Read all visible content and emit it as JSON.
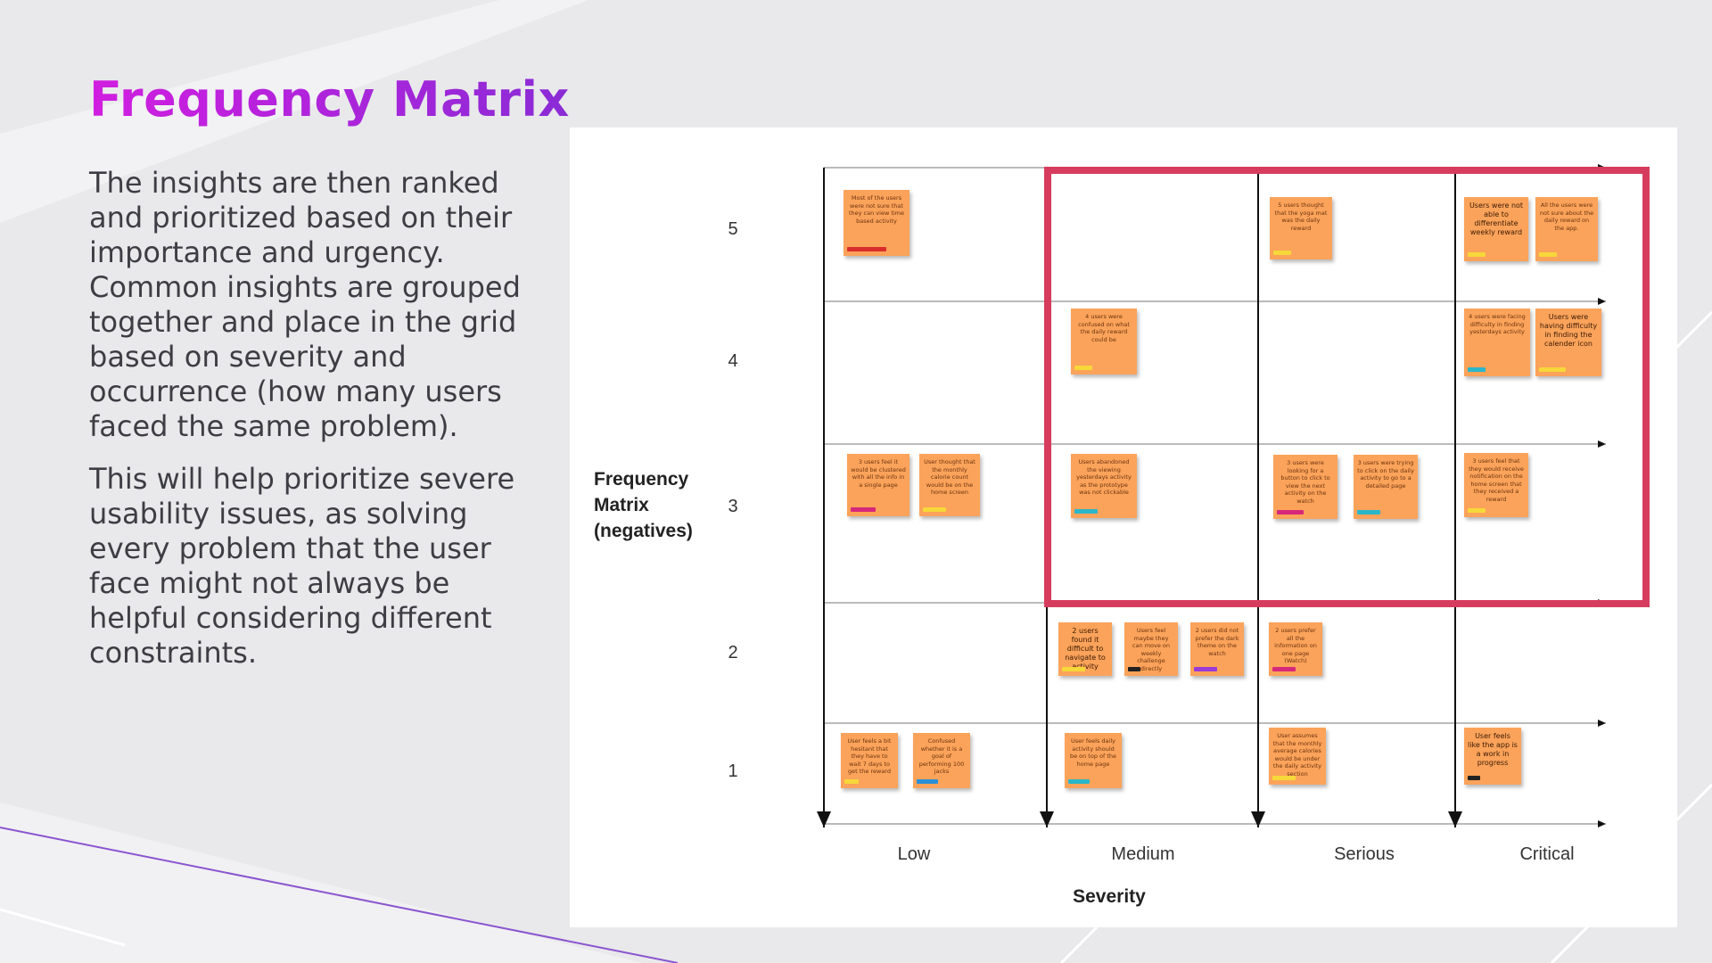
{
  "slide": {
    "title": "Frequency Matrix",
    "paragraph_1": "The insights are then ranked and prioritized based on their importance and urgency. Common insights are grouped together and place in the grid based on severity and occurrence (how many users faced the same problem).",
    "paragraph_2": "This will help prioritize severe usability issues, as solving every problem that the user face might not always be helpful considering different constraints.",
    "accent_color": "#b21fe0"
  },
  "matrix": {
    "y_axis_label": "Frequency Matrix (negatives)",
    "x_axis_label": "Severity",
    "rows": [
      "5",
      "4",
      "3",
      "2",
      "1"
    ],
    "columns": [
      "Low",
      "Medium",
      "Serious",
      "Critical"
    ],
    "highlight_color": "#d63c5e",
    "notes": [
      {
        "text": "Most of the users were not sure that they can view time based activity",
        "tag": "#d92d2d"
      },
      {
        "text": "5 users thought that the yoga mat was the daily reward",
        "tag": "#f6d83a"
      },
      {
        "text": "Users were not able to differentiate weekly reward",
        "tag": "#f6d83a",
        "dark": true
      },
      {
        "text": "All the users were not sure about the daily reward on the app.",
        "tag": "#f6d83a"
      },
      {
        "text": "4 users were confused on what the daily reward could be",
        "tag": "#f6d83a"
      },
      {
        "text": "4 users were facing difficulty in finding yesterdays activity",
        "tag": "#2bb6c9"
      },
      {
        "text": "Users were having difficulty in finding the calender icon",
        "tag": "#f6d83a",
        "dark": true
      },
      {
        "text": "3 users feel it would be clustered with all the info in a single page",
        "tag": "#d6287a"
      },
      {
        "text": "User thought that the monthly calorie count would be on the home screen",
        "tag": "#f6d83a"
      },
      {
        "text": "Users abandoned the viewing yesterdays activity as the prototype was not clickable",
        "tag": "#2bb6c9"
      },
      {
        "text": "3 users were looking for a button to click to view the next activity on the watch",
        "tag": "#d6287a"
      },
      {
        "text": "3 users were trying to click on the daily activity to go to a detailed page",
        "tag": "#2bb6c9"
      },
      {
        "text": "3 users feel that they would receive notification on the home screen that they received a reward",
        "tag": "#f6d83a"
      },
      {
        "text": "2 users found it difficult to navigate to activity",
        "tag": "#f6d83a",
        "dark": true
      },
      {
        "text": "Users feel maybe they can move on weekly challenge directly",
        "tag": "#222222"
      },
      {
        "text": "2 users did not prefer the dark theme on the watch",
        "tag": "#9a3bd8"
      },
      {
        "text": "2 users prefer all the information on one page (Watch)",
        "tag": "#d6287a"
      },
      {
        "text": "User feels a bit hesitant that they have to wait 7 days to get the reward",
        "tag": "#f6d83a"
      },
      {
        "text": "Confused whether it is a goal of performing 100 jacks",
        "tag": "#2b8fd6"
      },
      {
        "text": "User feels daily activity should be on top of the home page",
        "tag": "#2bb6c9"
      },
      {
        "text": "User assumes that the monthly average calories would be under the daily activity section",
        "tag": "#f6d83a"
      },
      {
        "text": "User feels like the app is a work in progress",
        "tag": "#222222",
        "dark": true
      }
    ]
  }
}
